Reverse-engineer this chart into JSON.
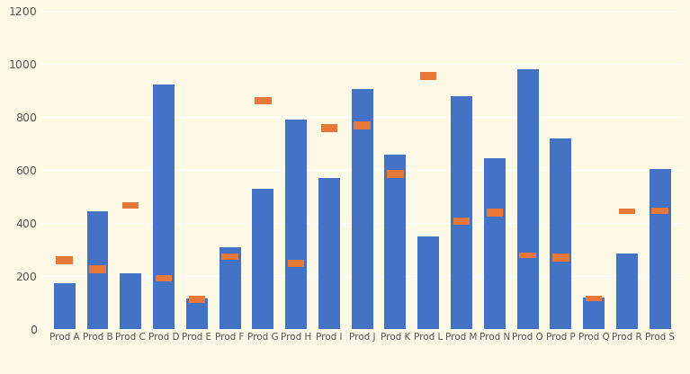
{
  "categories": [
    "Prod A",
    "Prod B",
    "Prod C",
    "Prod D",
    "Prod E",
    "Prod F",
    "Prod G",
    "Prod H",
    "Prod I",
    "Prod J",
    "Prod K",
    "Prod L",
    "Prod M",
    "Prod N",
    "Prod O",
    "Prod P",
    "Prod Q",
    "Prod R",
    "Prod S"
  ],
  "blue_bars": [
    175,
    445,
    210,
    925,
    115,
    310,
    530,
    790,
    570,
    905,
    660,
    350,
    880,
    645,
    980,
    720,
    120,
    285,
    605
  ],
  "orange_low": [
    245,
    210,
    455,
    180,
    100,
    260,
    850,
    235,
    745,
    755,
    570,
    940,
    395,
    425,
    270,
    255,
    105,
    435,
    435
  ],
  "orange_high": [
    275,
    240,
    480,
    205,
    125,
    285,
    875,
    260,
    775,
    785,
    600,
    970,
    420,
    455,
    290,
    285,
    125,
    455,
    460
  ],
  "background_color": "#fef9e7",
  "blue_color": "#4472c4",
  "orange_color": "#e8773a",
  "ylim": [
    0,
    1200
  ],
  "yticks": [
    0,
    200,
    400,
    600,
    800,
    1000,
    1200
  ],
  "figsize": [
    7.67,
    4.16
  ],
  "dpi": 100
}
